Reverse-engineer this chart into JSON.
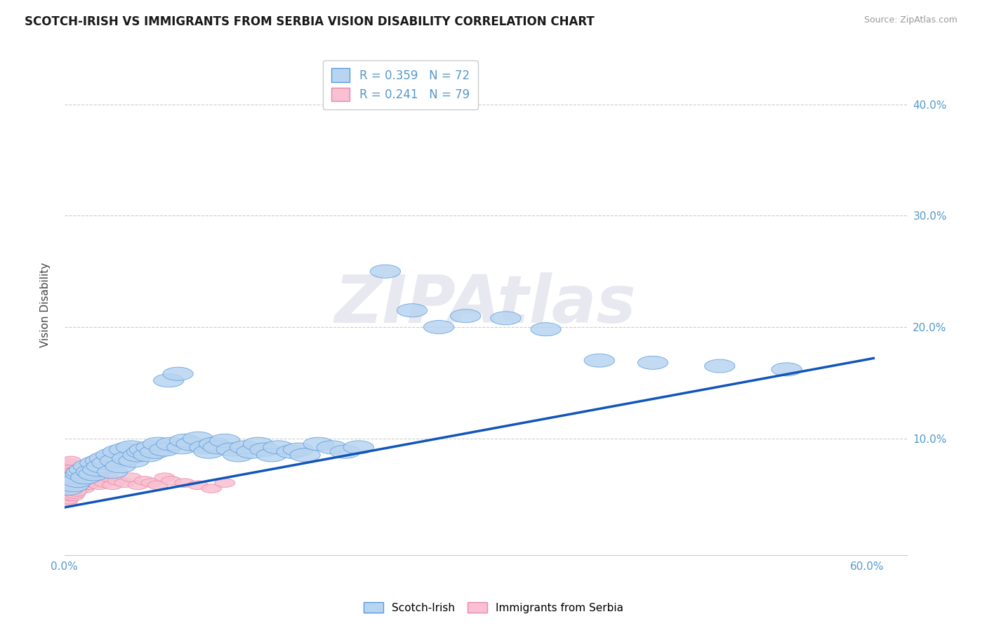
{
  "title": "SCOTCH-IRISH VS IMMIGRANTS FROM SERBIA VISION DISABILITY CORRELATION CHART",
  "source": "Source: ZipAtlas.com",
  "ylabel": "Vision Disability",
  "xlim": [
    0.0,
    0.63
  ],
  "ylim": [
    -0.005,
    0.445
  ],
  "ytick_positions": [
    0.1,
    0.2,
    0.3,
    0.4
  ],
  "ytick_labels": [
    "10.0%",
    "20.0%",
    "30.0%",
    "40.0%"
  ],
  "xtick_positions": [
    0.0,
    0.6
  ],
  "xtick_labels": [
    "0.0%",
    "60.0%"
  ],
  "legend1_label": "R = 0.359   N = 72",
  "legend2_label": "R = 0.241   N = 79",
  "scatter1_color": "#b8d4f0",
  "scatter1_edge": "#5599dd",
  "scatter2_color": "#f8c0d0",
  "scatter2_edge": "#e888a8",
  "trendline_color": "#1155bb",
  "watermark_text": "ZIPAtlas",
  "trendline_x0": 0.0,
  "trendline_y0": 0.038,
  "trendline_x1": 0.605,
  "trendline_y1": 0.172,
  "scotch_irish_x": [
    0.003,
    0.005,
    0.007,
    0.009,
    0.01,
    0.012,
    0.013,
    0.015,
    0.016,
    0.018,
    0.02,
    0.022,
    0.023,
    0.025,
    0.027,
    0.028,
    0.03,
    0.032,
    0.035,
    0.036,
    0.038,
    0.04,
    0.042,
    0.045,
    0.047,
    0.05,
    0.052,
    0.055,
    0.058,
    0.06,
    0.063,
    0.065,
    0.068,
    0.07,
    0.075,
    0.078,
    0.08,
    0.085,
    0.088,
    0.09,
    0.095,
    0.1,
    0.105,
    0.108,
    0.112,
    0.115,
    0.12,
    0.125,
    0.13,
    0.135,
    0.14,
    0.145,
    0.15,
    0.155,
    0.16,
    0.17,
    0.175,
    0.18,
    0.19,
    0.2,
    0.21,
    0.22,
    0.24,
    0.26,
    0.28,
    0.3,
    0.33,
    0.36,
    0.4,
    0.44,
    0.49,
    0.54
  ],
  "scotch_irish_y": [
    0.055,
    0.06,
    0.058,
    0.065,
    0.062,
    0.068,
    0.07,
    0.072,
    0.065,
    0.075,
    0.07,
    0.068,
    0.078,
    0.072,
    0.08,
    0.075,
    0.082,
    0.078,
    0.085,
    0.07,
    0.08,
    0.088,
    0.075,
    0.09,
    0.082,
    0.092,
    0.08,
    0.085,
    0.088,
    0.09,
    0.085,
    0.092,
    0.088,
    0.095,
    0.09,
    0.152,
    0.095,
    0.158,
    0.092,
    0.098,
    0.095,
    0.1,
    0.092,
    0.088,
    0.095,
    0.092,
    0.098,
    0.09,
    0.085,
    0.092,
    0.088,
    0.095,
    0.09,
    0.085,
    0.092,
    0.088,
    0.09,
    0.085,
    0.095,
    0.092,
    0.088,
    0.092,
    0.25,
    0.215,
    0.2,
    0.21,
    0.208,
    0.198,
    0.17,
    0.168,
    0.165,
    0.162
  ],
  "serbia_x": [
    0.001,
    0.001,
    0.001,
    0.002,
    0.002,
    0.002,
    0.002,
    0.003,
    0.003,
    0.003,
    0.003,
    0.003,
    0.004,
    0.004,
    0.004,
    0.004,
    0.005,
    0.005,
    0.005,
    0.005,
    0.005,
    0.006,
    0.006,
    0.006,
    0.007,
    0.007,
    0.007,
    0.008,
    0.008,
    0.008,
    0.009,
    0.009,
    0.009,
    0.01,
    0.01,
    0.01,
    0.011,
    0.011,
    0.012,
    0.012,
    0.013,
    0.013,
    0.014,
    0.014,
    0.015,
    0.015,
    0.016,
    0.017,
    0.018,
    0.019,
    0.02,
    0.022,
    0.024,
    0.026,
    0.028,
    0.03,
    0.033,
    0.036,
    0.04,
    0.045,
    0.05,
    0.055,
    0.06,
    0.065,
    0.07,
    0.075,
    0.08,
    0.09,
    0.1,
    0.11,
    0.12,
    0.002,
    0.003,
    0.004,
    0.005,
    0.006,
    0.007,
    0.008,
    0.009
  ],
  "serbia_y": [
    0.05,
    0.058,
    0.065,
    0.045,
    0.055,
    0.062,
    0.07,
    0.048,
    0.055,
    0.062,
    0.07,
    0.078,
    0.052,
    0.06,
    0.068,
    0.075,
    0.05,
    0.058,
    0.065,
    0.072,
    0.08,
    0.055,
    0.062,
    0.07,
    0.052,
    0.06,
    0.068,
    0.055,
    0.062,
    0.07,
    0.052,
    0.06,
    0.068,
    0.055,
    0.062,
    0.07,
    0.058,
    0.066,
    0.055,
    0.063,
    0.058,
    0.065,
    0.058,
    0.065,
    0.055,
    0.062,
    0.058,
    0.062,
    0.058,
    0.065,
    0.062,
    0.06,
    0.065,
    0.058,
    0.062,
    0.06,
    0.065,
    0.058,
    0.062,
    0.06,
    0.065,
    0.058,
    0.062,
    0.06,
    0.058,
    0.065,
    0.062,
    0.06,
    0.058,
    0.055,
    0.06,
    0.042,
    0.045,
    0.048,
    0.05,
    0.052,
    0.048,
    0.05,
    0.052
  ]
}
